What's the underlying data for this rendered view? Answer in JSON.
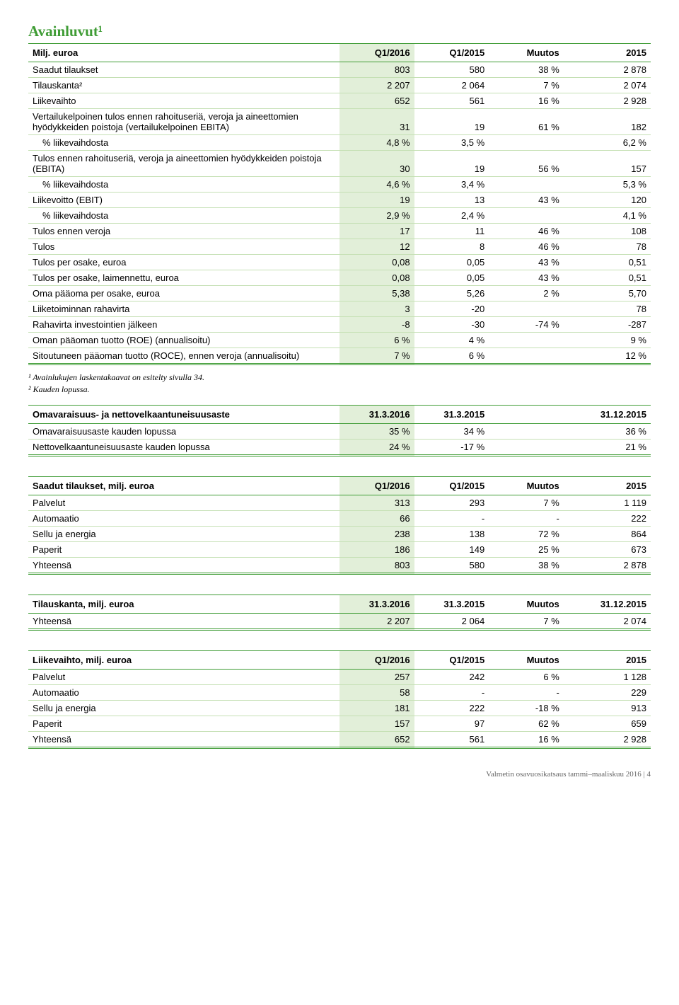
{
  "title": "Avainluvut¹",
  "colors": {
    "accent": "#3f9c35",
    "highlight": "#e2efd9",
    "row_border": "#c5e0b4"
  },
  "main": {
    "headers": [
      "Milj. euroa",
      "Q1/2016",
      "Q1/2015",
      "Muutos",
      "2015"
    ],
    "rows": [
      {
        "l": "Saadut tilaukset",
        "a": "803",
        "b": "580",
        "c": "38 %",
        "d": "2 878"
      },
      {
        "l": "Tilauskanta²",
        "a": "2 207",
        "b": "2 064",
        "c": "7 %",
        "d": "2 074"
      },
      {
        "l": "Liikevaihto",
        "a": "652",
        "b": "561",
        "c": "16 %",
        "d": "2 928"
      },
      {
        "l": "Vertailukelpoinen tulos ennen rahoituseriä, veroja ja aineettomien hyödykkeiden poistoja (vertailukelpoinen EBITA)",
        "a": "31",
        "b": "19",
        "c": "61 %",
        "d": "182"
      },
      {
        "l": "% liikevaihdosta",
        "a": "4,8 %",
        "b": "3,5 %",
        "c": "",
        "d": "6,2 %",
        "indent": true
      },
      {
        "l": "Tulos ennen rahoituseriä, veroja ja aineettomien hyödykkeiden poistoja (EBITA)",
        "a": "30",
        "b": "19",
        "c": "56 %",
        "d": "157"
      },
      {
        "l": "% liikevaihdosta",
        "a": "4,6 %",
        "b": "3,4 %",
        "c": "",
        "d": "5,3 %",
        "indent": true
      },
      {
        "l": "Liikevoitto (EBIT)",
        "a": "19",
        "b": "13",
        "c": "43 %",
        "d": "120"
      },
      {
        "l": "% liikevaihdosta",
        "a": "2,9 %",
        "b": "2,4 %",
        "c": "",
        "d": "4,1 %",
        "indent": true
      },
      {
        "l": "Tulos ennen veroja",
        "a": "17",
        "b": "11",
        "c": "46 %",
        "d": "108"
      },
      {
        "l": "Tulos",
        "a": "12",
        "b": "8",
        "c": "46 %",
        "d": "78"
      },
      {
        "l": "Tulos per osake, euroa",
        "a": "0,08",
        "b": "0,05",
        "c": "43 %",
        "d": "0,51"
      },
      {
        "l": "Tulos per osake, laimennettu, euroa",
        "a": "0,08",
        "b": "0,05",
        "c": "43 %",
        "d": "0,51"
      },
      {
        "l": "Oma pääoma per osake, euroa",
        "a": "5,38",
        "b": "5,26",
        "c": "2 %",
        "d": "5,70"
      },
      {
        "l": "Liiketoiminnan rahavirta",
        "a": "3",
        "b": "-20",
        "c": "",
        "d": "78"
      },
      {
        "l": "Rahavirta investointien jälkeen",
        "a": "-8",
        "b": "-30",
        "c": "-74 %",
        "d": "-287"
      },
      {
        "l": "Oman pääoman tuotto (ROE) (annualisoitu)",
        "a": "6 %",
        "b": "4 %",
        "c": "",
        "d": "9 %"
      },
      {
        "l": "Sitoutuneen pääoman tuotto (ROCE), ennen veroja (annualisoitu)",
        "a": "7 %",
        "b": "6 %",
        "c": "",
        "d": "12 %"
      }
    ]
  },
  "footnotes": [
    "¹ Avainlukujen laskentakaavat on esitelty sivulla 34.",
    "² Kauden lopussa."
  ],
  "equity": {
    "headers": [
      "Omavaraisuus- ja nettovelkaantuneisuusaste",
      "31.3.2016",
      "31.3.2015",
      "31.12.2015"
    ],
    "rows": [
      {
        "l": "Omavaraisuusaste kauden lopussa",
        "a": "35 %",
        "b": "34 %",
        "d": "36 %"
      },
      {
        "l": "Nettovelkaantuneisuusaste kauden lopussa",
        "a": "24 %",
        "b": "-17 %",
        "d": "21 %"
      }
    ]
  },
  "orders": {
    "headers": [
      "Saadut tilaukset, milj. euroa",
      "Q1/2016",
      "Q1/2015",
      "Muutos",
      "2015"
    ],
    "rows": [
      {
        "l": "Palvelut",
        "a": "313",
        "b": "293",
        "c": "7 %",
        "d": "1 119"
      },
      {
        "l": "Automaatio",
        "a": "66",
        "b": "-",
        "c": "-",
        "d": "222"
      },
      {
        "l": "Sellu ja energia",
        "a": "238",
        "b": "138",
        "c": "72 %",
        "d": "864"
      },
      {
        "l": "Paperit",
        "a": "186",
        "b": "149",
        "c": "25 %",
        "d": "673"
      },
      {
        "l": "Yhteensä",
        "a": "803",
        "b": "580",
        "c": "38 %",
        "d": "2 878"
      }
    ]
  },
  "backlog": {
    "headers": [
      "Tilauskanta, milj. euroa",
      "31.3.2016",
      "31.3.2015",
      "Muutos",
      "31.12.2015"
    ],
    "rows": [
      {
        "l": "Yhteensä",
        "a": "2 207",
        "b": "2 064",
        "c": "7 %",
        "d": "2 074"
      }
    ]
  },
  "revenue": {
    "headers": [
      "Liikevaihto, milj. euroa",
      "Q1/2016",
      "Q1/2015",
      "Muutos",
      "2015"
    ],
    "rows": [
      {
        "l": "Palvelut",
        "a": "257",
        "b": "242",
        "c": "6 %",
        "d": "1 128"
      },
      {
        "l": "Automaatio",
        "a": "58",
        "b": "-",
        "c": "-",
        "d": "229"
      },
      {
        "l": "Sellu ja energia",
        "a": "181",
        "b": "222",
        "c": "-18 %",
        "d": "913"
      },
      {
        "l": "Paperit",
        "a": "157",
        "b": "97",
        "c": "62 %",
        "d": "659"
      },
      {
        "l": "Yhteensä",
        "a": "652",
        "b": "561",
        "c": "16 %",
        "d": "2 928"
      }
    ]
  },
  "footer": "Valmetin osavuosikatsaus tammi–maaliskuu 2016 | 4",
  "col_widths": {
    "label": "50%",
    "a": "12%",
    "b": "12%",
    "c": "12%",
    "d": "14%"
  },
  "col_widths_3": {
    "label": "50%",
    "a": "12%",
    "b": "12%",
    "d": "26%"
  }
}
